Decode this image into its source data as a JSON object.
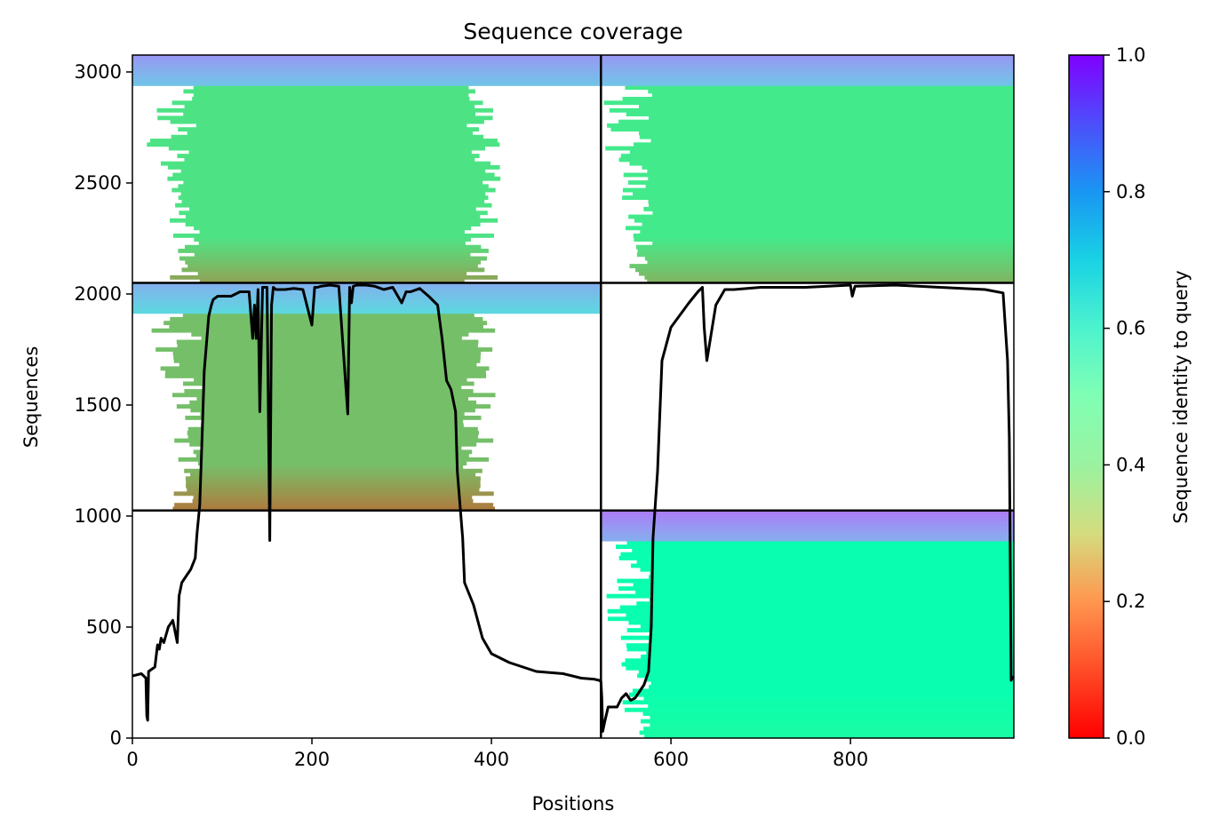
{
  "chart_data": {
    "type": "heatmap",
    "title": "Sequence coverage",
    "xlabel": "Positions",
    "ylabel": "Sequences",
    "xlim": [
      0,
      982
    ],
    "ylim": [
      0,
      3076
    ],
    "xticks": [
      0,
      200,
      400,
      600,
      800
    ],
    "yticks": [
      0,
      500,
      1000,
      1500,
      2000,
      2500,
      3000
    ],
    "colorbar": {
      "label": "Sequence identity to query",
      "range": [
        0.0,
        1.0
      ],
      "ticks": [
        "0.0",
        "0.2",
        "0.4",
        "0.6",
        "0.8",
        "1.0"
      ],
      "colormap": "rainbow_r"
    },
    "grid": false,
    "chain_boundaries": {
      "x": [
        522
      ],
      "y": [
        1025,
        2050
      ]
    },
    "blocks": [
      {
        "name": "chain A x pair 3",
        "x": [
          0,
          522
        ],
        "y": [
          2050,
          3076
        ],
        "aligned_x": [
          75,
          370
        ],
        "identity_top": 0.72,
        "identity_mid": 0.35,
        "identity_bottom": 0.22
      },
      {
        "name": "chain B x pair 3",
        "x": [
          522,
          982
        ],
        "y": [
          2050,
          3076
        ],
        "aligned_x": [
          580,
          982
        ],
        "identity_top": 0.72,
        "identity_mid": 0.37,
        "identity_bottom": 0.25
      },
      {
        "name": "chain A x pair 2",
        "x": [
          0,
          522
        ],
        "y": [
          1025,
          2050
        ],
        "aligned_x": [
          80,
          365
        ],
        "identity_top": 0.68,
        "identity_mid": 0.27,
        "identity_bottom": 0.16
      },
      {
        "name": "chain B x pair 1",
        "x": [
          522,
          982
        ],
        "y": [
          0,
          1025
        ],
        "aligned_x": [
          580,
          982
        ],
        "identity_top": 0.76,
        "identity_mid": 0.48,
        "identity_bottom": 0.45
      }
    ],
    "coverage_line": {
      "color": "#000000",
      "x": [
        0,
        10,
        15,
        16,
        17,
        18,
        25,
        28,
        30,
        32,
        35,
        40,
        45,
        50,
        52,
        55,
        60,
        65,
        70,
        72,
        75,
        78,
        80,
        85,
        88,
        90,
        95,
        100,
        110,
        120,
        130,
        134,
        136,
        138,
        140,
        142,
        145,
        150,
        153,
        155,
        157,
        160,
        170,
        180,
        190,
        200,
        203,
        206,
        210,
        220,
        230,
        240,
        242,
        244,
        246,
        250,
        260,
        270,
        280,
        290,
        300,
        305,
        310,
        320,
        330,
        340,
        345,
        350,
        355,
        360,
        362,
        365,
        368,
        370,
        380,
        390,
        400,
        420,
        450,
        480,
        500,
        515,
        520,
        522,
        523,
        524,
        526,
        530,
        540,
        545,
        550,
        555,
        560,
        565,
        570,
        575,
        578,
        580,
        585,
        590,
        600,
        620,
        630,
        635,
        637,
        640,
        650,
        660,
        670,
        700,
        750,
        800,
        802,
        805,
        850,
        900,
        950,
        970,
        975,
        977,
        979,
        981
      ],
      "y": [
        280,
        290,
        270,
        100,
        80,
        300,
        320,
        420,
        400,
        450,
        430,
        500,
        530,
        430,
        640,
        700,
        730,
        760,
        810,
        920,
        1050,
        1400,
        1650,
        1900,
        1950,
        1975,
        1990,
        1990,
        1990,
        2010,
        2010,
        1800,
        1950,
        1800,
        2020,
        1470,
        2030,
        2030,
        890,
        1950,
        2030,
        2020,
        2020,
        2025,
        2020,
        1860,
        2030,
        2030,
        2035,
        2040,
        2035,
        1460,
        2030,
        1960,
        2035,
        2040,
        2040,
        2035,
        2020,
        2030,
        1960,
        2010,
        2010,
        2025,
        1990,
        1950,
        1800,
        1610,
        1570,
        1470,
        1200,
        1050,
        900,
        700,
        600,
        450,
        380,
        340,
        300,
        290,
        270,
        265,
        260,
        255,
        180,
        30,
        70,
        140,
        140,
        180,
        200,
        170,
        180,
        210,
        240,
        300,
        500,
        900,
        1200,
        1700,
        1850,
        1960,
        2010,
        2030,
        1850,
        1700,
        1950,
        2020,
        2020,
        2030,
        2030,
        2040,
        1990,
        2035,
        2040,
        2030,
        2020,
        2005,
        1700,
        1350,
        260,
        280
      ]
    }
  }
}
